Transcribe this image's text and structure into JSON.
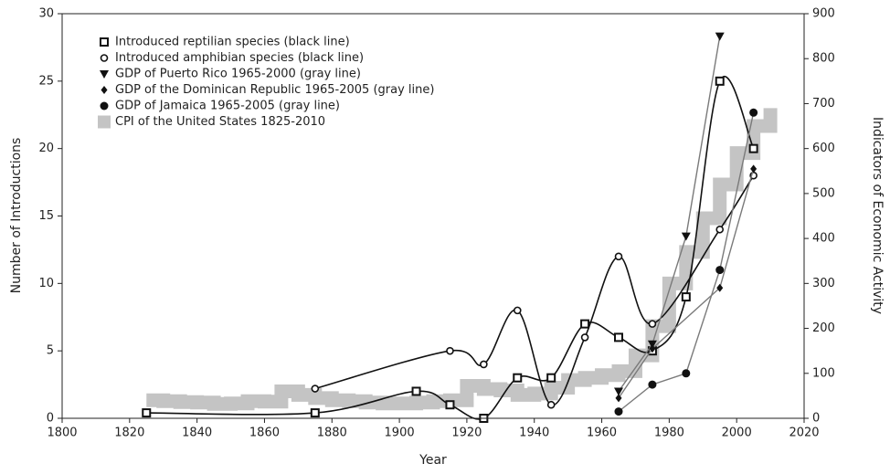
{
  "chart_data": {
    "type": "line",
    "x_label": "Year",
    "y_label": "Number of Introductions",
    "y2_label": "Indicators of Economic Activity",
    "xlim": [
      1800,
      2020
    ],
    "xticks": [
      1800,
      1820,
      1840,
      1860,
      1880,
      1900,
      1920,
      1940,
      1960,
      1980,
      2000,
      2020
    ],
    "ylim": [
      0,
      30
    ],
    "yticks": [
      0,
      5,
      10,
      15,
      20,
      25,
      30
    ],
    "y2lim": [
      0,
      900
    ],
    "y2ticks": [
      0,
      100,
      200,
      300,
      400,
      500,
      600,
      700,
      800,
      900
    ],
    "legend": "upper left",
    "series": [
      {
        "name": "Introduced reptilian species (black line)",
        "color": "#111111",
        "marker": "square",
        "smooth": true,
        "x": [
          1825,
          1875,
          1905,
          1915,
          1925,
          1935,
          1945,
          1955,
          1965,
          1975,
          1985,
          1995,
          2005
        ],
        "values": [
          0.4,
          0.4,
          2,
          1,
          0,
          3,
          3,
          7,
          6,
          5,
          9,
          25,
          20
        ]
      },
      {
        "name": "Introduced amphibian species (black line)",
        "color": "#111111",
        "marker": "circle",
        "smooth": true,
        "x": [
          1875,
          1915,
          1925,
          1935,
          1945,
          1955,
          1965,
          1975,
          1995,
          2005
        ],
        "values": [
          2.2,
          5,
          4,
          8,
          1,
          6,
          12,
          7,
          14,
          18
        ]
      },
      {
        "name": "GDP of Puerto Rico 1965-2000 (gray line)",
        "color": "#7a7a7a",
        "marker": "triangle-down",
        "axis": "y2",
        "x": [
          1965,
          1975,
          1985,
          1995
        ],
        "values": [
          60,
          165,
          405,
          850
        ]
      },
      {
        "name": "GDP of the Dominican Republic 1965-2005 (gray line)",
        "color": "#7a7a7a",
        "marker": "diamond",
        "axis": "y2",
        "x": [
          1965,
          1975,
          1995,
          2005
        ],
        "values": [
          45,
          155,
          290,
          555
        ]
      },
      {
        "name": "GDP of Jamaica 1965-2005 (gray line)",
        "color": "#7a7a7a",
        "marker": "filled-circle",
        "axis": "y2",
        "x": [
          1965,
          1975,
          1985,
          1995,
          2005
        ],
        "values": [
          15,
          75,
          100,
          330,
          680
        ]
      },
      {
        "name": "CPI of the United States 1825-2010",
        "color": "#c4c4c4",
        "marker": "band",
        "axis": "y2",
        "x": [
          1825,
          1830,
          1835,
          1840,
          1845,
          1850,
          1855,
          1860,
          1865,
          1870,
          1875,
          1880,
          1885,
          1890,
          1895,
          1900,
          1905,
          1910,
          1915,
          1920,
          1925,
          1930,
          1935,
          1940,
          1945,
          1950,
          1955,
          1960,
          1965,
          1970,
          1975,
          1980,
          1985,
          1990,
          1995,
          2000,
          2005,
          2010
        ],
        "values": [
          40,
          38,
          36,
          35,
          32,
          33,
          38,
          37,
          60,
          52,
          45,
          40,
          38,
          35,
          33,
          33,
          35,
          38,
          40,
          72,
          65,
          62,
          52,
          55,
          68,
          85,
          90,
          96,
          105,
          140,
          205,
          300,
          370,
          445,
          520,
          590,
          650,
          690
        ]
      }
    ]
  }
}
